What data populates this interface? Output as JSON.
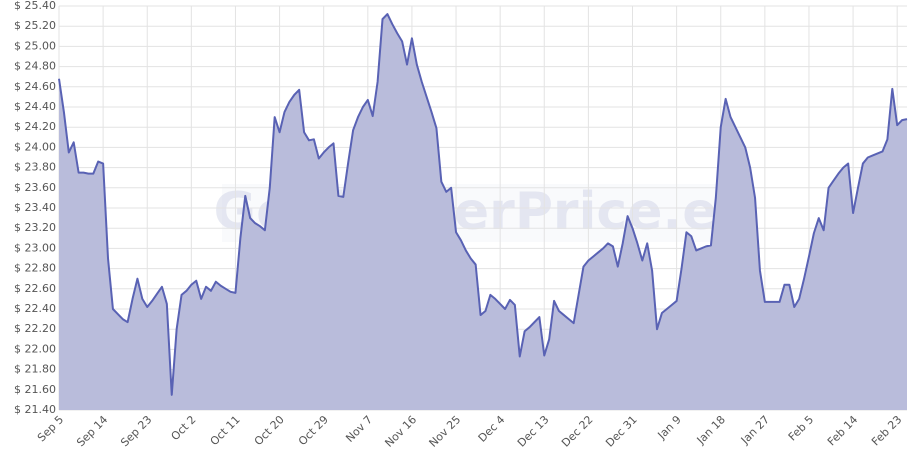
{
  "chart_data": {
    "type": "area",
    "watermark": "GoldSilverPrice.eu",
    "categories": [
      "Sep 5",
      null,
      null,
      null,
      null,
      null,
      null,
      null,
      null,
      "Sep 14",
      null,
      null,
      null,
      null,
      null,
      null,
      null,
      null,
      "Sep 23",
      null,
      null,
      null,
      null,
      null,
      null,
      null,
      null,
      "Oct 2",
      null,
      null,
      null,
      null,
      null,
      null,
      null,
      null,
      "Oct 11",
      null,
      null,
      null,
      null,
      null,
      null,
      null,
      null,
      "Oct 20",
      null,
      null,
      null,
      null,
      null,
      null,
      null,
      null,
      "Oct 29",
      null,
      null,
      null,
      null,
      null,
      null,
      null,
      null,
      "Nov 7",
      null,
      null,
      null,
      null,
      null,
      null,
      null,
      null,
      "Nov 16",
      null,
      null,
      null,
      null,
      null,
      null,
      null,
      null,
      "Nov 25",
      null,
      null,
      null,
      null,
      null,
      null,
      null,
      null,
      "Dec 4",
      null,
      null,
      null,
      null,
      null,
      null,
      null,
      null,
      "Dec 13",
      null,
      null,
      null,
      null,
      null,
      null,
      null,
      null,
      "Dec 22",
      null,
      null,
      null,
      null,
      null,
      null,
      null,
      null,
      "Dec 31",
      null,
      null,
      null,
      null,
      null,
      null,
      null,
      null,
      "Jan 9",
      null,
      null,
      null,
      null,
      null,
      null,
      null,
      null,
      "Jan 18",
      null,
      null,
      null,
      null,
      null,
      null,
      null,
      null,
      "Jan 27",
      null,
      null,
      null,
      null,
      null,
      null,
      null,
      null,
      "Feb 5",
      null,
      null,
      null,
      null,
      null,
      null,
      null,
      null,
      "Feb 14",
      null,
      null,
      null,
      null,
      null,
      null,
      null,
      null,
      "Feb 23",
      null,
      null
    ],
    "values": [
      24.68,
      24.35,
      23.95,
      24.05,
      23.75,
      23.75,
      23.74,
      23.74,
      23.86,
      23.84,
      22.9,
      22.4,
      22.35,
      22.3,
      22.27,
      22.5,
      22.7,
      22.5,
      22.42,
      22.48,
      22.55,
      22.62,
      22.45,
      21.55,
      22.2,
      22.54,
      22.58,
      22.64,
      22.68,
      22.5,
      22.62,
      22.58,
      22.67,
      22.63,
      22.6,
      22.57,
      22.56,
      23.1,
      23.52,
      23.3,
      23.25,
      23.22,
      23.18,
      23.6,
      24.3,
      24.15,
      24.35,
      24.45,
      24.52,
      24.57,
      24.15,
      24.07,
      24.08,
      23.89,
      23.95,
      24,
      24.04,
      23.52,
      23.51,
      23.85,
      24.17,
      24.3,
      24.4,
      24.47,
      24.31,
      24.65,
      25.27,
      25.32,
      25.22,
      25.13,
      25.05,
      24.82,
      25.08,
      24.82,
      24.65,
      24.5,
      24.35,
      24.19,
      23.66,
      23.56,
      23.6,
      23.16,
      23.08,
      22.98,
      22.9,
      22.84,
      22.34,
      22.38,
      22.54,
      22.5,
      22.45,
      22.4,
      22.49,
      22.44,
      21.93,
      22.18,
      22.22,
      22.27,
      22.32,
      21.94,
      22.1,
      22.48,
      22.38,
      22.34,
      22.3,
      22.26,
      22.54,
      22.82,
      22.88,
      22.92,
      22.96,
      23,
      23.05,
      23.02,
      22.82,
      23.05,
      23.32,
      23.2,
      23.05,
      22.88,
      23.05,
      22.78,
      22.2,
      22.36,
      22.4,
      22.44,
      22.48,
      22.8,
      23.16,
      23.12,
      22.98,
      23,
      23.02,
      23.03,
      23.5,
      24.2,
      24.48,
      24.3,
      24.2,
      24.1,
      24,
      23.8,
      23.5,
      22.78,
      22.47,
      22.47,
      22.47,
      22.47,
      22.64,
      22.64,
      22.42,
      22.5,
      22.7,
      22.92,
      23.15,
      23.3,
      23.18,
      23.6,
      23.67,
      23.74,
      23.8,
      23.84,
      23.35,
      23.6,
      23.84,
      23.9,
      23.92,
      23.94,
      23.96,
      24.08,
      24.58,
      24.22,
      24.27,
      24.28
    ],
    "color": "#5962b4",
    "fill": "#b9bcdb",
    "ylim": [
      21.4,
      25.4
    ],
    "yticks": [
      {
        "value": 21.4,
        "label": "$ 21.40"
      },
      {
        "value": 21.6,
        "label": "$ 21.60"
      },
      {
        "value": 21.8,
        "label": "$ 21.80"
      },
      {
        "value": 22,
        "label": "$ 22.00"
      },
      {
        "value": 22.2,
        "label": "$ 22.20"
      },
      {
        "value": 22.4,
        "label": "$ 22.40"
      },
      {
        "value": 22.6,
        "label": "$ 22.60"
      },
      {
        "value": 22.8,
        "label": "$ 22.80"
      },
      {
        "value": 23,
        "label": "$ 23.00"
      },
      {
        "value": 23.2,
        "label": "$ 23.20"
      },
      {
        "value": 23.4,
        "label": "$ 23.40"
      },
      {
        "value": 23.6,
        "label": "$ 23.60"
      },
      {
        "value": 23.8,
        "label": "$ 23.80"
      },
      {
        "value": 24,
        "label": "$ 24.00"
      },
      {
        "value": 24.2,
        "label": "$ 24.20"
      },
      {
        "value": 24.4,
        "label": "$ 24.40"
      },
      {
        "value": 24.6,
        "label": "$ 24.60"
      },
      {
        "value": 24.8,
        "label": "$ 24.80"
      },
      {
        "value": 25,
        "label": "$ 25.00"
      },
      {
        "value": 25.2,
        "label": "$ 25.20"
      },
      {
        "value": 25.4,
        "label": "$ 25.40"
      }
    ],
    "grid": true
  }
}
